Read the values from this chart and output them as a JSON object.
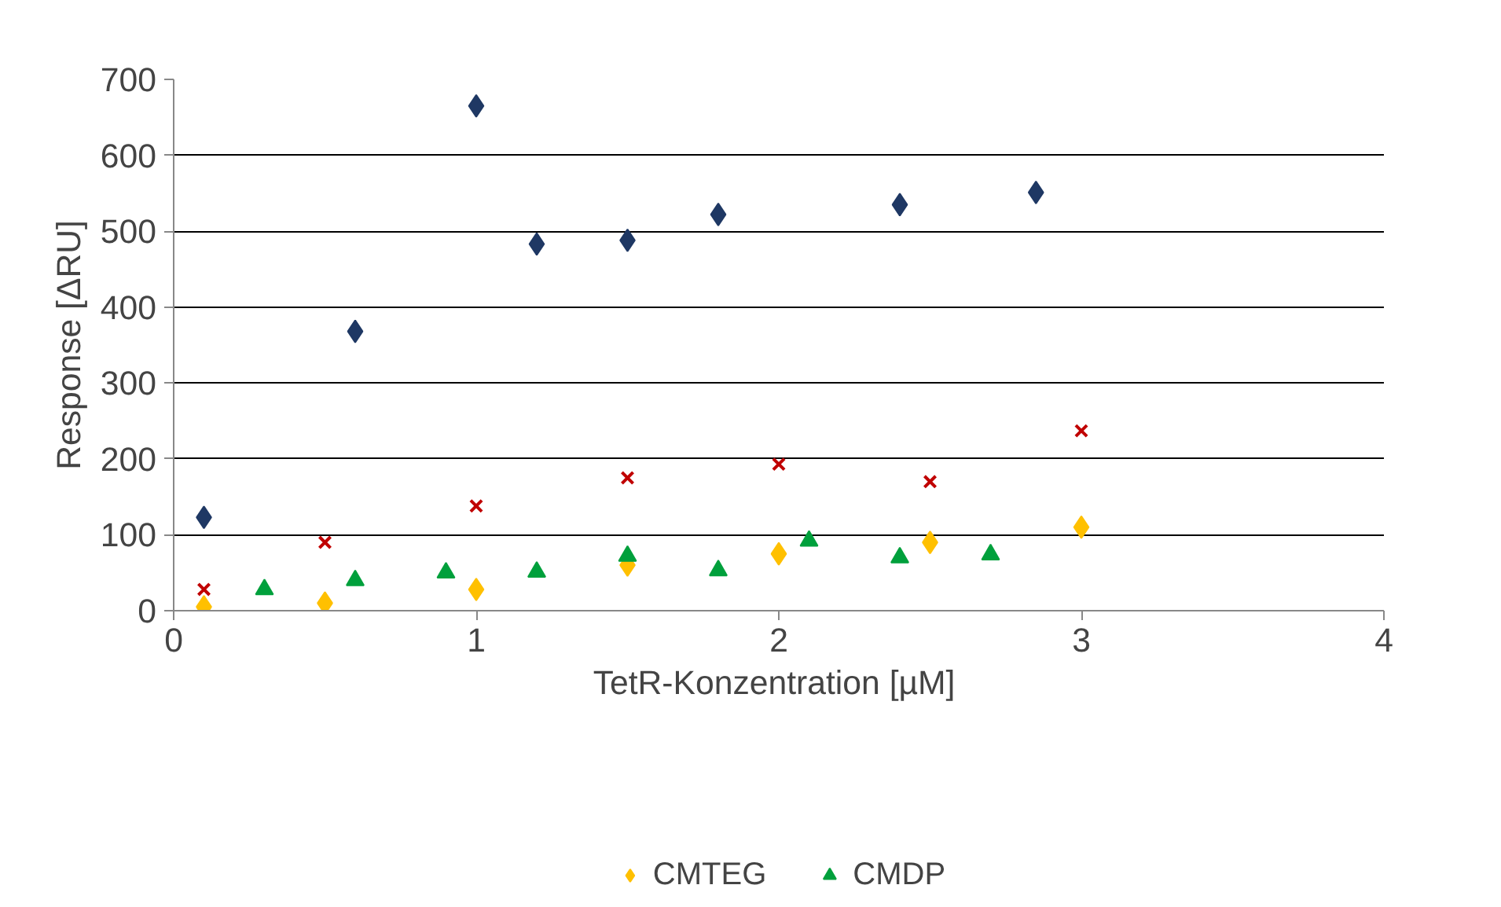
{
  "chart_data": {
    "type": "scatter",
    "xlabel": "TetR-Konzentration  [µM]",
    "ylabel": "Response [ΔRU]",
    "xlim": [
      0,
      4
    ],
    "xticks": [
      0,
      1,
      2,
      3,
      4
    ],
    "ylim": [
      0,
      700
    ],
    "yticks": [
      0,
      100,
      200,
      300,
      400,
      500,
      600,
      700
    ],
    "grid": "y",
    "legend": "bottom",
    "series": [
      {
        "name": "CMTEG",
        "color": "#ffc000",
        "marker": "diamond",
        "x": [
          0.1,
          0.5,
          1.0,
          1.5,
          2.0,
          2.5,
          3.0
        ],
        "values": [
          5,
          10,
          28,
          60,
          75,
          90,
          110
        ]
      },
      {
        "name": "CMDP",
        "color": "#00a03c",
        "marker": "triangle",
        "x": [
          0.3,
          0.6,
          0.9,
          1.2,
          1.5,
          1.8,
          2.1,
          2.4,
          2.7
        ],
        "values": [
          28,
          40,
          50,
          51,
          72,
          53,
          92,
          70,
          74
        ]
      },
      {
        "color": "#1f3864",
        "marker": "diamond",
        "x": [
          0.1,
          0.6,
          1.0,
          1.2,
          1.5,
          1.8,
          2.4,
          2.85
        ],
        "values": [
          123,
          368,
          665,
          483,
          488,
          522,
          535,
          551
        ]
      },
      {
        "color": "#c00000",
        "marker": "x",
        "x": [
          0.1,
          0.5,
          1.0,
          1.5,
          2.0,
          2.5,
          3.0
        ],
        "values": [
          28,
          90,
          138,
          175,
          193,
          170,
          237
        ]
      }
    ]
  }
}
